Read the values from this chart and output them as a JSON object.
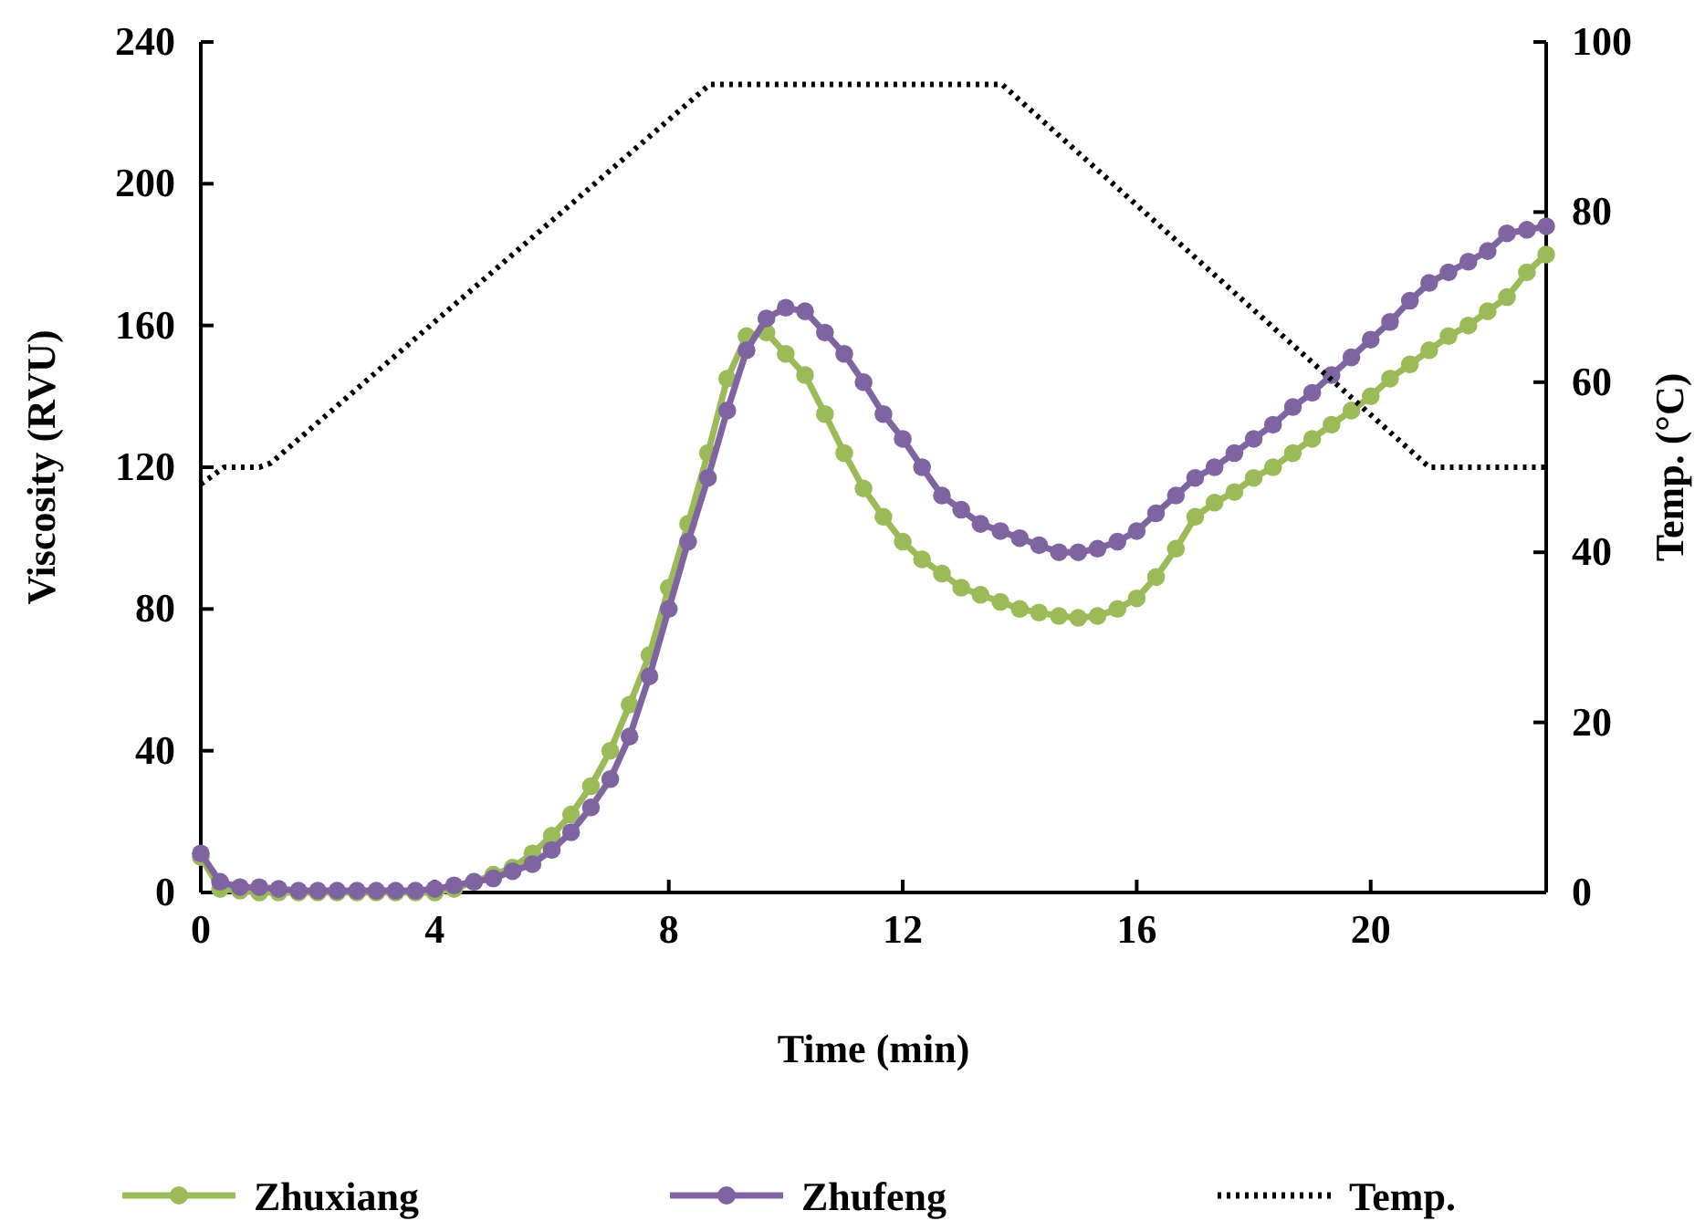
{
  "chart_data": {
    "type": "line",
    "xlabel": "Time (min)",
    "ylabel": "Viscosity (RVU)",
    "y2label": "Temp. (°C)",
    "xlim": [
      0,
      23
    ],
    "xticks": [
      0,
      4,
      8,
      12,
      16,
      20
    ],
    "ylim": [
      0,
      240
    ],
    "yticks": [
      0,
      40,
      80,
      120,
      160,
      200,
      240
    ],
    "y2lim": [
      0,
      100
    ],
    "y2ticks": [
      0,
      20,
      40,
      60,
      80,
      100
    ],
    "legend": "bottom",
    "grid": false,
    "series": [
      {
        "name": "Zhuxiang",
        "color": "#9bbb59",
        "marker": "circle",
        "line_style": "solid",
        "x": [
          0,
          0.33,
          0.67,
          1,
          1.33,
          1.67,
          2,
          2.33,
          2.67,
          3,
          3.33,
          3.67,
          4,
          4.33,
          4.67,
          5,
          5.33,
          5.67,
          6,
          6.33,
          6.67,
          7,
          7.33,
          7.67,
          8,
          8.33,
          8.67,
          9,
          9.33,
          9.67,
          10,
          10.33,
          10.67,
          11,
          11.33,
          11.67,
          12,
          12.33,
          12.67,
          13,
          13.33,
          13.67,
          14,
          14.33,
          14.67,
          15,
          15.33,
          15.67,
          16,
          16.33,
          16.67,
          17,
          17.33,
          17.67,
          18,
          18.33,
          18.67,
          19,
          19.33,
          19.67,
          20,
          20.33,
          20.67,
          21,
          21.33,
          21.67,
          22,
          22.33,
          22.67,
          23
        ],
        "values": [
          10,
          1,
          0.5,
          0,
          0,
          0,
          0,
          0,
          0,
          0,
          0,
          0,
          0,
          1,
          3,
          5,
          7,
          11,
          16,
          22,
          30,
          40,
          53,
          67,
          86,
          104,
          124,
          145,
          157,
          158,
          152,
          146,
          135,
          124,
          114,
          106,
          99,
          94,
          90,
          86,
          84,
          82,
          80,
          79,
          78,
          77.5,
          78,
          80,
          83,
          89,
          97,
          106,
          110,
          113,
          117,
          120,
          124,
          128,
          132,
          136,
          140,
          145,
          149,
          153,
          157,
          160,
          164,
          168,
          175,
          180
        ]
      },
      {
        "name": "Zhufeng",
        "color": "#8064a2",
        "marker": "circle",
        "line_style": "solid",
        "x": [
          0,
          0.33,
          0.67,
          1,
          1.33,
          1.67,
          2,
          2.33,
          2.67,
          3,
          3.33,
          3.67,
          4,
          4.33,
          4.67,
          5,
          5.33,
          5.67,
          6,
          6.33,
          6.67,
          7,
          7.33,
          7.67,
          8,
          8.33,
          8.67,
          9,
          9.33,
          9.67,
          10,
          10.33,
          10.67,
          11,
          11.33,
          11.67,
          12,
          12.33,
          12.67,
          13,
          13.33,
          13.67,
          14,
          14.33,
          14.67,
          15,
          15.33,
          15.67,
          16,
          16.33,
          16.67,
          17,
          17.33,
          17.67,
          18,
          18.33,
          18.67,
          19,
          19.33,
          19.67,
          20,
          20.33,
          20.67,
          21,
          21.33,
          21.67,
          22,
          22.33,
          22.67,
          23
        ],
        "values": [
          11,
          3,
          1.5,
          1.5,
          1,
          0.5,
          0.5,
          0.5,
          0.5,
          0.5,
          0.5,
          0.5,
          1,
          2,
          3,
          4,
          6,
          8,
          12,
          17,
          24,
          32,
          44,
          61,
          80,
          99,
          117,
          136,
          153,
          162,
          165,
          164,
          158,
          152,
          144,
          135,
          128,
          120,
          112,
          108,
          104,
          102,
          100,
          98,
          96,
          96,
          97,
          99,
          102,
          107,
          112,
          117,
          120,
          124,
          128,
          132,
          137,
          141,
          146,
          151,
          156,
          161,
          167,
          172,
          175,
          178,
          181,
          186,
          187,
          188
        ]
      },
      {
        "name": "Temp.",
        "color": "#000000",
        "marker": "none",
        "line_style": "dotted",
        "axis": "y2",
        "x": [
          0,
          0.4,
          1,
          1.2,
          8.7,
          13.7,
          21,
          23
        ],
        "values": [
          48,
          50,
          50,
          50.5,
          95,
          95,
          50,
          50
        ]
      }
    ]
  }
}
